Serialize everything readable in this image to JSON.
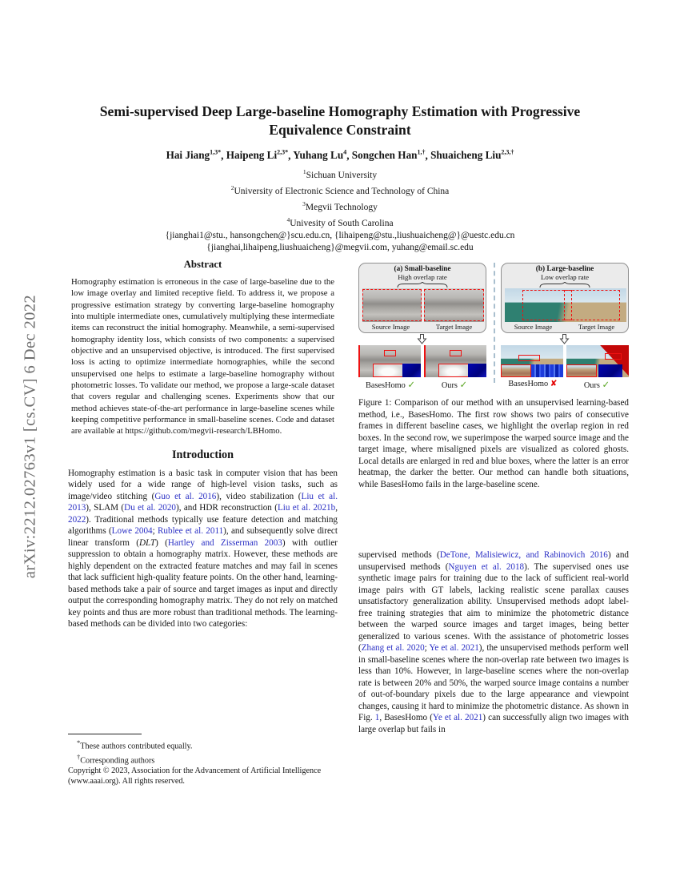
{
  "colors": {
    "cite_blue": "#2a2fc4",
    "check_green": "#59a621",
    "cross_red": "#e30000",
    "box_red": "#ee1111",
    "heatmap_dark_blue": "#0000a6",
    "heatmap_bright_blue": "#2a52f0",
    "arxiv_gray": "#6e6e6e"
  },
  "arxiv_label": "arXiv:2212.02763v1  [cs.CV]  6 Dec 2022",
  "header": {
    "title": "Semi-supervised Deep Large-baseline Homography Estimation with Progressive Equivalence Constraint",
    "author_separator": ", ",
    "authors": [
      {
        "name": "Hai Jiang",
        "sup": "1,3*"
      },
      {
        "name": "Haipeng Li",
        "sup": "2,3*"
      },
      {
        "name": "Yuhang Lu",
        "sup": "4"
      },
      {
        "name": "Songchen Han",
        "sup": "1,†"
      },
      {
        "name": "Shuaicheng Liu",
        "sup": "2,3,†"
      }
    ],
    "affiliations": [
      {
        "sup": "1",
        "text": "Sichuan University"
      },
      {
        "sup": "2",
        "text": "University of Electronic Science and Technology of China"
      },
      {
        "sup": "3",
        "text": "Megvii Technology"
      },
      {
        "sup": "4",
        "text": "Univesity of South Carolina"
      }
    ],
    "emails": [
      "{jianghai1@stu., hansongchen@}scu.edu.cn, {lihaipeng@stu.,liushuaicheng@}@uestc.edu.cn",
      "{jianghai,lihaipeng,liushuaicheng}@megvii.com, yuhang@email.sc.edu"
    ]
  },
  "abstract": {
    "heading": "Abstract",
    "text": "Homography estimation is erroneous in the case of large-baseline due to the low image overlay and limited receptive field. To address it, we propose a progressive estimation strategy by converting large-baseline homography into multiple intermediate ones, cumulatively multiplying these intermediate items can reconstruct the initial homography. Meanwhile, a semi-supervised homography identity loss, which consists of two components: a supervised objective and an unsupervised objective, is introduced. The first supervised loss is acting to optimize intermediate homographies, while the second unsupervised one helps to estimate a large-baseline homography without photometric losses. To validate our method, we propose a large-scale dataset that covers regular and challenging scenes. Experiments show that our method achieves state-of-the-art performance in large-baseline scenes while keeping competitive performance in small-baseline scenes. Code and dataset are available at https://github.com/megvii-research/LBHomo."
  },
  "introduction": {
    "heading": "Introduction",
    "para1": [
      {
        "t": "Homography estimation is a basic task in computer vision that has been widely used for a wide range of high-level vision tasks, such as image/video stitching ("
      },
      {
        "t": "Guo et al. 2016",
        "c": "cite"
      },
      {
        "t": "), video stabilization ("
      },
      {
        "t": "Liu et al. 2013",
        "c": "cite"
      },
      {
        "t": "), SLAM ("
      },
      {
        "t": "Du et al. 2020",
        "c": "cite"
      },
      {
        "t": "), and HDR reconstruction ("
      },
      {
        "t": "Liu et al. 2021b",
        "c": "cite"
      },
      {
        "t": ", "
      },
      {
        "t": "2022",
        "c": "cite"
      },
      {
        "t": "). Traditional methods typically use feature detection and matching algorithms ("
      },
      {
        "t": "Lowe 2004",
        "c": "cite"
      },
      {
        "t": "; "
      },
      {
        "t": "Rublee et al. 2011",
        "c": "cite"
      },
      {
        "t": "), and subsequently solve direct linear transform ("
      },
      {
        "t": "DLT",
        "c": "mathcal"
      },
      {
        "t": ") ("
      },
      {
        "t": "Hartley and Zisserman 2003",
        "c": "cite"
      },
      {
        "t": ") with outlier suppression to obtain a homography matrix. However, these methods are highly dependent on the extracted feature matches and may fail in scenes that lack sufficient high-quality feature points. On the other hand, learning-based methods take a pair of source and target images as input and directly output the corresponding homography matrix. They do not rely on matched key points and thus are more robust than traditional methods. The learning-based methods can be divided into two categories:"
      }
    ]
  },
  "footnotes": {
    "equal": {
      "marker": "*",
      "text": "These authors contributed equally."
    },
    "corresponding": {
      "marker": "†",
      "text": "Corresponding authors"
    },
    "copyright": "Copyright © 2023, Association for the Advancement of Artificial Intelligence (www.aaai.org). All rights reserved."
  },
  "figure1": {
    "panel_a": {
      "title": "(a) Small-baseline",
      "subtitle": "High overlap rate",
      "source_label": "Source Image",
      "target_label": "Target Image"
    },
    "panel_b": {
      "title": "(b) Large-baseline",
      "subtitle": "Low overlap rate",
      "source_label": "Source Image",
      "target_label": "Target Image"
    },
    "results_a": [
      {
        "method": "BasesHomo",
        "mark": "✓"
      },
      {
        "method": "Ours",
        "mark": "✓"
      }
    ],
    "results_b": [
      {
        "method": "BasesHomo",
        "mark": "✘"
      },
      {
        "method": "Ours",
        "mark": "✓"
      }
    ],
    "caption": "Figure 1: Comparison of our method with an unsupervised learning-based method, i.e., BasesHomo. The first row shows two pairs of consecutive frames in different baseline cases, we highlight the overlap region in red boxes. In the second row, we superimpose the warped source image and the target image, where misaligned pixels are visualized as colored ghosts. Local details are enlarged in red and blue boxes, where the latter is an error heatmap, the darker the better. Our method can handle both situations, while BasesHomo fails in the large-baseline scene."
  },
  "right_column": {
    "para1": [
      {
        "t": "supervised methods ("
      },
      {
        "t": "DeTone, Malisiewicz, and Rabinovich 2016",
        "c": "cite"
      },
      {
        "t": ") and unsupervised methods ("
      },
      {
        "t": "Nguyen et al. 2018",
        "c": "cite"
      },
      {
        "t": "). The supervised ones use synthetic image pairs for training due to the lack of sufficient real-world image pairs with GT labels, lacking realistic scene parallax causes unsatisfactory generalization ability. Unsupervised methods adopt label-free training strategies that aim to minimize the photometric distance between the warped source images and target images, being better generalized to various scenes. With the assistance of photometric losses ("
      },
      {
        "t": "Zhang et al. 2020",
        "c": "cite"
      },
      {
        "t": "; "
      },
      {
        "t": "Ye et al. 2021",
        "c": "cite"
      },
      {
        "t": "), the unsupervised methods perform well in small-baseline scenes where the non-overlap rate between two images is less than 10%. However, in large-baseline scenes where the non-overlap rate is between 20% and 50%, the warped source image contains a number of out-of-boundary pixels due to the large appearance and viewpoint changes, causing it hard to minimize the photometric distance. As shown in Fig. "
      },
      {
        "t": "1",
        "c": "cite"
      },
      {
        "t": ", BasesHomo ("
      },
      {
        "t": "Ye et al. 2021",
        "c": "cite"
      },
      {
        "t": ") can successfully align two images with large overlap but fails in"
      }
    ]
  }
}
